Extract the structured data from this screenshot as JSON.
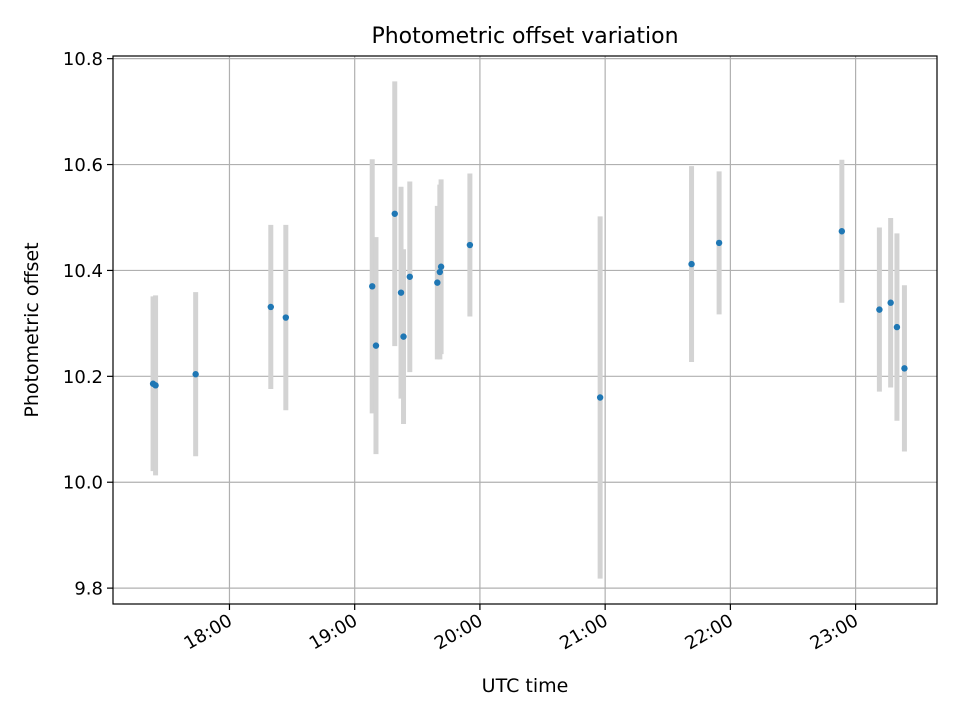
{
  "chart_data": {
    "type": "scatter",
    "title": "Photometric offset variation",
    "xlabel": "UTC time",
    "ylabel": "Photometric offset",
    "grid": true,
    "xlim_hours": [
      17.07,
      23.65
    ],
    "ylim": [
      9.77,
      10.805
    ],
    "x_ticks": [
      {
        "value": 18.0,
        "label": "18:00"
      },
      {
        "value": 19.0,
        "label": "19:00"
      },
      {
        "value": 20.0,
        "label": "20:00"
      },
      {
        "value": 21.0,
        "label": "21:00"
      },
      {
        "value": 22.0,
        "label": "22:00"
      },
      {
        "value": 23.0,
        "label": "23:00"
      }
    ],
    "y_ticks": [
      {
        "value": 9.8,
        "label": "9.8"
      },
      {
        "value": 10.0,
        "label": "10.0"
      },
      {
        "value": 10.2,
        "label": "10.2"
      },
      {
        "value": 10.4,
        "label": "10.4"
      },
      {
        "value": 10.6,
        "label": "10.6"
      },
      {
        "value": 10.8,
        "label": "10.8"
      }
    ],
    "marker_color": "#1f77b4",
    "errorbar_color": "#d3d3d3",
    "points": [
      {
        "x": 17.39,
        "y": 10.186,
        "err": 0.165
      },
      {
        "x": 17.41,
        "y": 10.183,
        "err": 0.17
      },
      {
        "x": 17.73,
        "y": 10.204,
        "err": 0.155
      },
      {
        "x": 18.33,
        "y": 10.331,
        "err": 0.155
      },
      {
        "x": 18.45,
        "y": 10.311,
        "err": 0.175
      },
      {
        "x": 19.14,
        "y": 10.37,
        "err": 0.24
      },
      {
        "x": 19.17,
        "y": 10.258,
        "err": 0.205
      },
      {
        "x": 19.32,
        "y": 10.507,
        "err": 0.25
      },
      {
        "x": 19.37,
        "y": 10.358,
        "err": 0.2
      },
      {
        "x": 19.39,
        "y": 10.275,
        "err": 0.165
      },
      {
        "x": 19.44,
        "y": 10.388,
        "err": 0.18
      },
      {
        "x": 19.66,
        "y": 10.377,
        "err": 0.145
      },
      {
        "x": 19.68,
        "y": 10.397,
        "err": 0.165
      },
      {
        "x": 19.69,
        "y": 10.407,
        "err": 0.165
      },
      {
        "x": 19.92,
        "y": 10.448,
        "err": 0.135
      },
      {
        "x": 20.96,
        "y": 10.16,
        "err": 0.342
      },
      {
        "x": 21.69,
        "y": 10.412,
        "err": 0.185
      },
      {
        "x": 21.91,
        "y": 10.452,
        "err": 0.135
      },
      {
        "x": 22.89,
        "y": 10.474,
        "err": 0.135
      },
      {
        "x": 23.19,
        "y": 10.326,
        "err": 0.155
      },
      {
        "x": 23.28,
        "y": 10.339,
        "err": 0.16
      },
      {
        "x": 23.33,
        "y": 10.293,
        "err": 0.177
      },
      {
        "x": 23.39,
        "y": 10.215,
        "err": 0.157
      }
    ]
  }
}
